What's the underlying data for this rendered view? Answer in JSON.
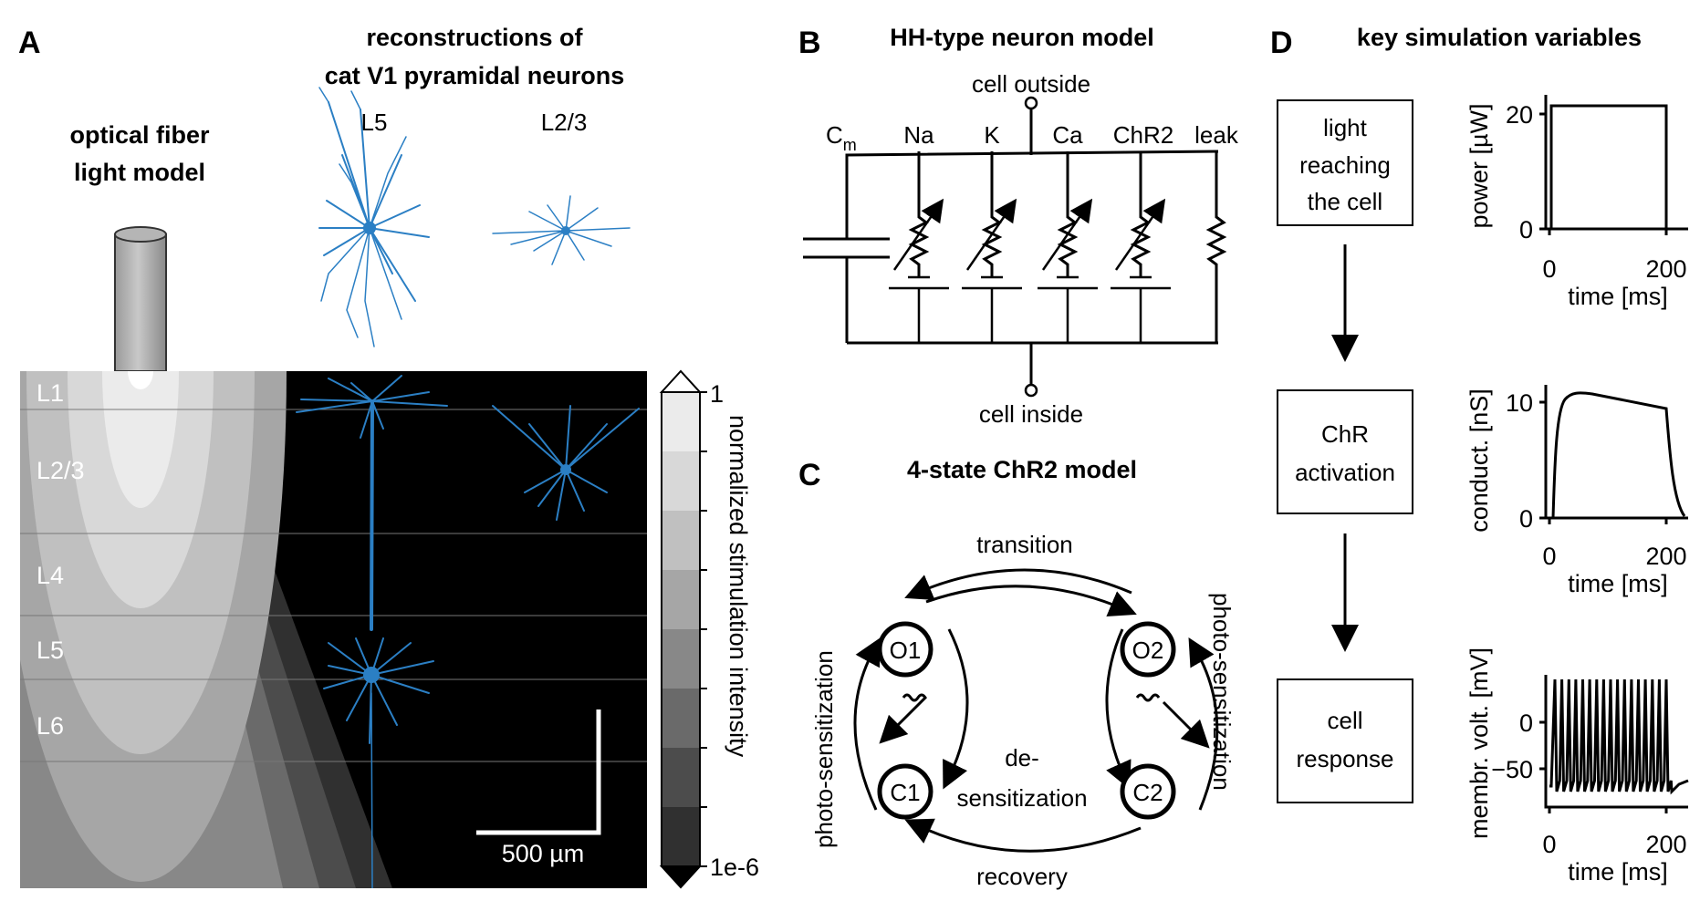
{
  "panels": {
    "a": {
      "letter": "A",
      "fiber_title": [
        "optical fiber",
        "light model"
      ],
      "recon_title": [
        "reconstructions of",
        "cat V1 pyramidal neurons"
      ],
      "neuron_labels": [
        "L5",
        "L2/3"
      ],
      "layers": [
        "L1",
        "L2/3",
        "L4",
        "L5",
        "L6"
      ],
      "scale_bar": "500 µm",
      "colorbar": {
        "label": "normalized stimulation intensity",
        "max": "1",
        "min": "1e-6",
        "colors": [
          "#ebebeb",
          "#d8d8d8",
          "#c0c0c0",
          "#a6a6a6",
          "#888888",
          "#6a6a6a",
          "#4c4c4c",
          "#303030"
        ]
      },
      "neuron_color": "#2b7fc4"
    },
    "b": {
      "letter": "B",
      "title": "HH-type neuron model",
      "top": "cell outside",
      "bottom": "cell inside",
      "cm": "C",
      "cm_sub": "m",
      "channels": [
        "Na",
        "K",
        "Ca",
        "ChR2",
        "leak"
      ]
    },
    "c": {
      "letter": "C",
      "title": "4-state ChR2 model",
      "states": [
        "O1",
        "O2",
        "C1",
        "C2"
      ],
      "transition": "transition",
      "recovery": "recovery",
      "photo_left": "photo-sensitization",
      "photo_right": "photo-sensitization",
      "desens": [
        "de-",
        "sensitization"
      ]
    },
    "d": {
      "letter": "D",
      "title": "key simulation variables",
      "boxes": [
        [
          "light",
          "reaching",
          "the cell"
        ],
        [
          "ChR",
          "activation"
        ],
        [
          "cell",
          "response"
        ]
      ],
      "plots": [
        {
          "ylabel": "power [µW]",
          "xlabel": "time [ms]",
          "yticks": [
            "20",
            "0"
          ],
          "xticks": [
            "0",
            "200"
          ]
        },
        {
          "ylabel": "conduct. [nS]",
          "xlabel": "time [ms]",
          "yticks": [
            "10",
            "0"
          ],
          "xticks": [
            "0",
            "200"
          ]
        },
        {
          "ylabel": "membr. volt. [mV]",
          "xlabel": "time [ms]",
          "yticks": [
            "0",
            "−50"
          ],
          "xticks": [
            "0",
            "200"
          ]
        }
      ]
    }
  }
}
